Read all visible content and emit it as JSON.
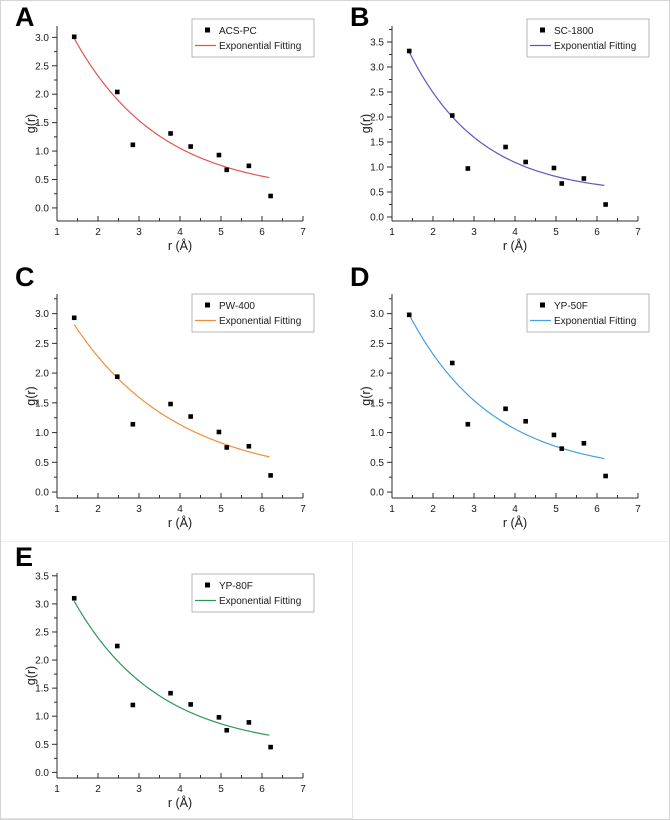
{
  "figure": {
    "background": "#ffffff",
    "outer_border_color": "#d4d4d4",
    "panel_box_border_color": "#e3e3e3"
  },
  "axis_style": {
    "axis_color": "#2e2e2e",
    "text_color": "#1a1a1a",
    "marker_color": "#000000",
    "legend_border_color": "#a6a6a6",
    "x_ticks": [
      1,
      2,
      3,
      4,
      5,
      6,
      7
    ],
    "x_minor_step": 0.5,
    "x_range": [
      1,
      7
    ],
    "legend_fit_label": "Exponential Fitting",
    "legend_marker_symbol": "filled-square",
    "legend_position": "top-right"
  },
  "chart_data": [
    {
      "panel_label": "A",
      "type": "scatter",
      "series_name": "ACS-PC",
      "line_color": "#e2544f",
      "xlabel": "r (Å)",
      "ylabel": "g(r)",
      "x": [
        1.42,
        2.47,
        2.85,
        3.77,
        4.26,
        4.95,
        5.14,
        5.68,
        6.21
      ],
      "y": [
        3.01,
        2.04,
        1.11,
        1.31,
        1.08,
        0.93,
        0.67,
        0.74,
        0.21
      ],
      "fit": {
        "model": "y = y0 + A*exp(-k*r)",
        "y0": 0.25,
        "A": 5.37,
        "k": 0.476,
        "x_start": 1.42,
        "x_end": 6.2
      },
      "y_ticks": [
        0,
        0.5,
        1,
        1.5,
        2,
        2.5,
        3
      ],
      "y_domain": [
        -0.23,
        3.2
      ]
    },
    {
      "panel_label": "B",
      "type": "scatter",
      "series_name": "SC-1800",
      "line_color": "#5f55c2",
      "xlabel": "r (Å)",
      "ylabel": "g(r)",
      "x": [
        1.42,
        2.47,
        2.85,
        3.77,
        4.26,
        4.95,
        5.14,
        5.68,
        6.21
      ],
      "y": [
        3.32,
        2.03,
        0.97,
        1.4,
        1.1,
        0.98,
        0.67,
        0.77,
        0.25
      ],
      "fit": {
        "model": "y = y0 + A*exp(-k*r)",
        "y0": 0.45,
        "A": 6.48,
        "k": 0.578,
        "x_start": 1.42,
        "x_end": 6.2
      },
      "y_ticks": [
        0,
        0.5,
        1,
        1.5,
        2,
        2.5,
        3,
        3.5
      ],
      "y_domain": [
        -0.08,
        3.82
      ]
    },
    {
      "panel_label": "C",
      "type": "scatter",
      "series_name": "PW-400",
      "line_color": "#f28e38",
      "xlabel": "r (Å)",
      "ylabel": "g(r)",
      "x": [
        1.42,
        2.47,
        2.85,
        3.77,
        4.26,
        4.95,
        5.14,
        5.68,
        6.21
      ],
      "y": [
        2.93,
        1.94,
        1.14,
        1.48,
        1.27,
        1.01,
        0.75,
        0.77,
        0.28
      ],
      "fit": {
        "model": "y = y0 + A*exp(-k*r)",
        "y0": 0.2,
        "A": 4.61,
        "k": 0.399,
        "x_start": 1.42,
        "x_end": 6.2
      },
      "y_ticks": [
        0,
        0.5,
        1,
        1.5,
        2,
        2.5,
        3
      ],
      "y_domain": [
        -0.1,
        3.33
      ]
    },
    {
      "panel_label": "D",
      "type": "scatter",
      "series_name": "YP-50F",
      "line_color": "#459fe3",
      "xlabel": "r (Å)",
      "ylabel": "g(r)",
      "x": [
        1.42,
        2.47,
        2.85,
        3.77,
        4.26,
        4.95,
        5.14,
        5.68,
        6.21
      ],
      "y": [
        2.98,
        2.17,
        1.14,
        1.4,
        1.19,
        0.96,
        0.73,
        0.82,
        0.27
      ],
      "fit": {
        "model": "y = y0 + A*exp(-k*r)",
        "y0": 0.3,
        "A": 5.36,
        "k": 0.488,
        "x_start": 1.42,
        "x_end": 6.2
      },
      "y_ticks": [
        0,
        0.5,
        1,
        1.5,
        2,
        2.5,
        3
      ],
      "y_domain": [
        -0.1,
        3.33
      ]
    },
    {
      "panel_label": "E",
      "type": "scatter",
      "series_name": "YP-80F",
      "line_color": "#2e9658",
      "xlabel": "r (Å)",
      "ylabel": "g(r)",
      "x": [
        1.42,
        2.47,
        2.85,
        3.77,
        4.26,
        4.95,
        5.14,
        5.68,
        6.21
      ],
      "y": [
        3.1,
        2.25,
        1.2,
        1.41,
        1.21,
        0.98,
        0.75,
        0.89,
        0.45
      ],
      "fit": {
        "model": "y = y0 + A*exp(-k*r)",
        "y0": 0.4,
        "A": 5.28,
        "k": 0.486,
        "x_start": 1.42,
        "x_end": 6.2
      },
      "y_ticks": [
        0,
        0.5,
        1,
        1.5,
        2,
        2.5,
        3,
        3.5
      ],
      "y_domain": [
        -0.1,
        3.55
      ]
    }
  ]
}
